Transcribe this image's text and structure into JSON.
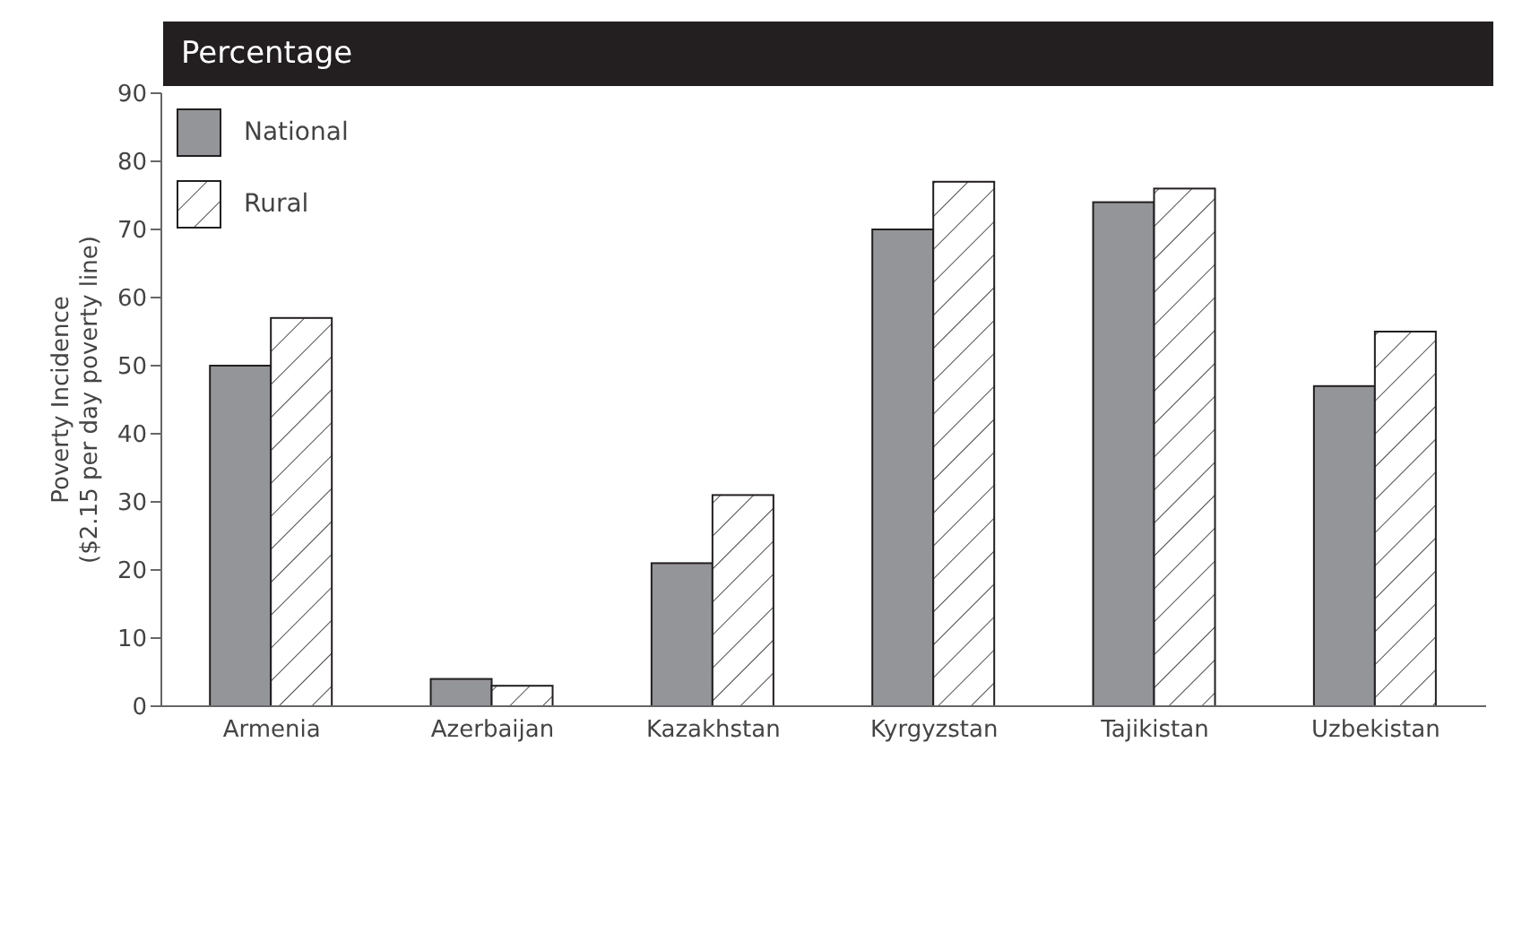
{
  "chart_data": {
    "type": "bar",
    "subtitle": "Percentage",
    "ylabel": "Poverty Incidence\n($2.15 per day poverty line)",
    "categories": [
      "Armenia",
      "Azerbaijan",
      "Kazakhstan",
      "Kyrgyzstan",
      "Tajikistan",
      "Uzbekistan"
    ],
    "series": [
      {
        "name": "National",
        "color": "#939598",
        "values": [
          50,
          4,
          21,
          70,
          74,
          47
        ]
      },
      {
        "name": "Rural",
        "color": "#ffffff",
        "values": [
          57,
          3,
          31,
          77,
          76,
          55
        ]
      }
    ],
    "ylim": [
      0,
      90
    ],
    "yticks": [
      0,
      10,
      20,
      30,
      40,
      50,
      60,
      70,
      80,
      90
    ],
    "grid": false,
    "legend": "top left"
  }
}
